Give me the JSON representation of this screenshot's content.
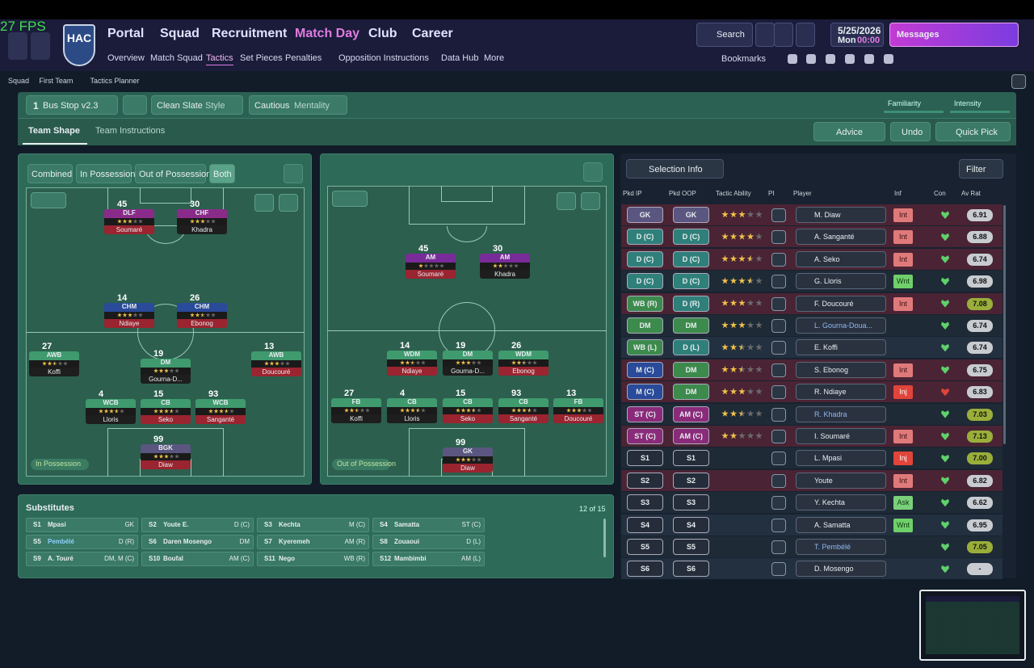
{
  "fps": "27 FPS",
  "header": {
    "badge": "HAC",
    "nav": [
      "Portal",
      "Squad",
      "Recruitment",
      "Match Day",
      "Club",
      "Career"
    ],
    "subnav": [
      "Overview",
      "Match Squad",
      "Tactics",
      "Set Pieces",
      "Penalties",
      "Opposition Instructions",
      "Data Hub",
      "More"
    ],
    "search": "Search",
    "date": "5/25/2026",
    "day": "Mon",
    "time": "00:00",
    "messages": "Messages",
    "bookmarks": "Bookmarks"
  },
  "breadcrumb": [
    "Squad",
    "First Team",
    "Tactics Planner"
  ],
  "tactic_bar": {
    "slot": "1",
    "tactic": "Bus Stop v2.3",
    "style_value": "Clean Slate",
    "style_label": "Style",
    "mentality_value": "Cautious",
    "mentality_label": "Mentality",
    "familiarity": "Familiarity",
    "intensity": "Intensity",
    "tabs": [
      "Team Shape",
      "Team Instructions"
    ],
    "advice": "Advice",
    "undo": "Undo",
    "quick_pick": "Quick Pick"
  },
  "phase_buttons": [
    "Combined",
    "In Possession",
    "Out of Possession",
    "Both"
  ],
  "in_possession": {
    "label": "In Possession",
    "players": [
      {
        "number": 45,
        "role": "DLF",
        "name": "Soumaré",
        "stars": 3
      },
      {
        "number": 30,
        "role": "CHF",
        "name": "Khadra",
        "stars": 3
      },
      {
        "number": 14,
        "role": "CHM",
        "name": "Ndiaye",
        "stars": 3
      },
      {
        "number": 26,
        "role": "CHM",
        "name": "Ebonog",
        "stars": 2.5
      },
      {
        "number": 27,
        "role": "AWB",
        "name": "Koffi",
        "stars": 2.5
      },
      {
        "number": 19,
        "role": "DM",
        "name": "Gourna-D...",
        "stars": 3
      },
      {
        "number": 13,
        "role": "AWB",
        "name": "Doucouré",
        "stars": 3
      },
      {
        "number": 4,
        "role": "WCB",
        "name": "Lloris",
        "stars": 3.5
      },
      {
        "number": 15,
        "role": "CB",
        "name": "Seko",
        "stars": 3.5
      },
      {
        "number": 93,
        "role": "WCB",
        "name": "Sanganté",
        "stars": 3.5
      },
      {
        "number": 99,
        "role": "BGK",
        "name": "Diaw",
        "stars": 3
      }
    ]
  },
  "out_of_possession": {
    "label": "Out of Possession",
    "players": [
      {
        "number": 45,
        "role": "AM",
        "name": "Soumaré",
        "stars": 1
      },
      {
        "number": 30,
        "role": "AM",
        "name": "Khadra",
        "stars": 2
      },
      {
        "number": 14,
        "role": "WDM",
        "name": "Ndiaye",
        "stars": 2.5
      },
      {
        "number": 19,
        "role": "DM",
        "name": "Gourna-D...",
        "stars": 3
      },
      {
        "number": 26,
        "role": "WDM",
        "name": "Ebonog",
        "stars": 2.5
      },
      {
        "number": 27,
        "role": "FB",
        "name": "Koffi",
        "stars": 2.5
      },
      {
        "number": 4,
        "role": "CB",
        "name": "Lloris",
        "stars": 3.5
      },
      {
        "number": 15,
        "role": "CB",
        "name": "Seko",
        "stars": 3.5
      },
      {
        "number": 93,
        "role": "CB",
        "name": "Sanganté",
        "stars": 3.5
      },
      {
        "number": 13,
        "role": "FB",
        "name": "Doucouré",
        "stars": 3
      },
      {
        "number": 99,
        "role": "GK",
        "name": "Diaw",
        "stars": 3
      }
    ]
  },
  "substitutes": {
    "title": "Substitutes",
    "count": "12 of 15",
    "players": [
      {
        "slot": "S1",
        "name": "Mpasi",
        "position": "GK"
      },
      {
        "slot": "S2",
        "name": "Youte E.",
        "position": "D (C)"
      },
      {
        "slot": "S3",
        "name": "Kechta",
        "position": "M (C)"
      },
      {
        "slot": "S4",
        "name": "Samatta",
        "position": "ST (C)"
      },
      {
        "slot": "S5",
        "name": "Pembélé",
        "position": "D (R)"
      },
      {
        "slot": "S6",
        "name": "Daren Mosengo",
        "position": "DM"
      },
      {
        "slot": "S7",
        "name": "Kyeremeh",
        "position": "AM (R)"
      },
      {
        "slot": "S8",
        "name": "Zouaoui",
        "position": "D (L)"
      },
      {
        "slot": "S9",
        "name": "A. Touré",
        "position": "DM, M (C)"
      },
      {
        "slot": "S10",
        "name": "Boufal",
        "position": "AM (C)"
      },
      {
        "slot": "S11",
        "name": "Nego",
        "position": "WB (R)"
      },
      {
        "slot": "S12",
        "name": "Mambimbi",
        "position": "AM (L)"
      }
    ]
  },
  "selection": {
    "button": "Selection Info",
    "filter": "Filter",
    "headers": [
      "Pkd IP",
      "Pkd OOP",
      "Tactic Ability",
      "PI",
      "Player",
      "Inf",
      "Con",
      "Av Rat"
    ],
    "rows": [
      {
        "ip": "GK",
        "oop": "GK",
        "ability": 3,
        "player": "M. Diaw",
        "inf": "Int",
        "rating": "6.91"
      },
      {
        "ip": "D (C)",
        "oop": "D (C)",
        "ability": 4,
        "player": "A. Sanganté",
        "inf": "Int",
        "rating": "6.88"
      },
      {
        "ip": "D (C)",
        "oop": "D (C)",
        "ability": 3.5,
        "player": "A. Seko",
        "inf": "Int",
        "rating": "6.74"
      },
      {
        "ip": "D (C)",
        "oop": "D (C)",
        "ability": 3.5,
        "player": "G. Lloris",
        "inf": "Wnt",
        "rating": "6.98"
      },
      {
        "ip": "WB (R)",
        "oop": "D (R)",
        "ability": 3,
        "player": "F. Doucouré",
        "inf": "Int",
        "rating": "7.08"
      },
      {
        "ip": "DM",
        "oop": "DM",
        "ability": 3,
        "player": "L. Gourna-Doua...",
        "rating": "6.74"
      },
      {
        "ip": "WB (L)",
        "oop": "D (L)",
        "ability": 2.5,
        "player": "E. Koffi",
        "rating": "6.74"
      },
      {
        "ip": "M (C)",
        "oop": "DM",
        "ability": 2.5,
        "player": "S. Ebonog",
        "inf": "Int",
        "rating": "6.75"
      },
      {
        "ip": "M (C)",
        "oop": "DM",
        "ability": 3,
        "player": "R. Ndiaye",
        "inf": "Inj",
        "rating": "6.83"
      },
      {
        "ip": "ST (C)",
        "oop": "AM (C)",
        "ability": 2.5,
        "player": "R. Khadra",
        "rating": "7.03"
      },
      {
        "ip": "ST (C)",
        "oop": "AM (C)",
        "ability": 2,
        "player": "I. Soumaré",
        "inf": "Int",
        "rating": "7.13"
      },
      {
        "ip": "S1",
        "oop": "S1",
        "player": "L. Mpasi",
        "inf": "Inj",
        "rating": "7.00"
      },
      {
        "ip": "S2",
        "oop": "S2",
        "player": "Youte",
        "inf": "Int",
        "rating": "6.82"
      },
      {
        "ip": "S3",
        "oop": "S3",
        "player": "Y. Kechta",
        "inf": "Ask",
        "rating": "6.62"
      },
      {
        "ip": "S4",
        "oop": "S4",
        "player": "A. Samatta",
        "inf": "Wnt",
        "rating": "6.95"
      },
      {
        "ip": "S5",
        "oop": "S5",
        "player": "T. Pembélé",
        "rating": "7.05"
      },
      {
        "ip": "S6",
        "oop": "S6",
        "player": "D. Mosengo",
        "rating": "-"
      }
    ]
  }
}
